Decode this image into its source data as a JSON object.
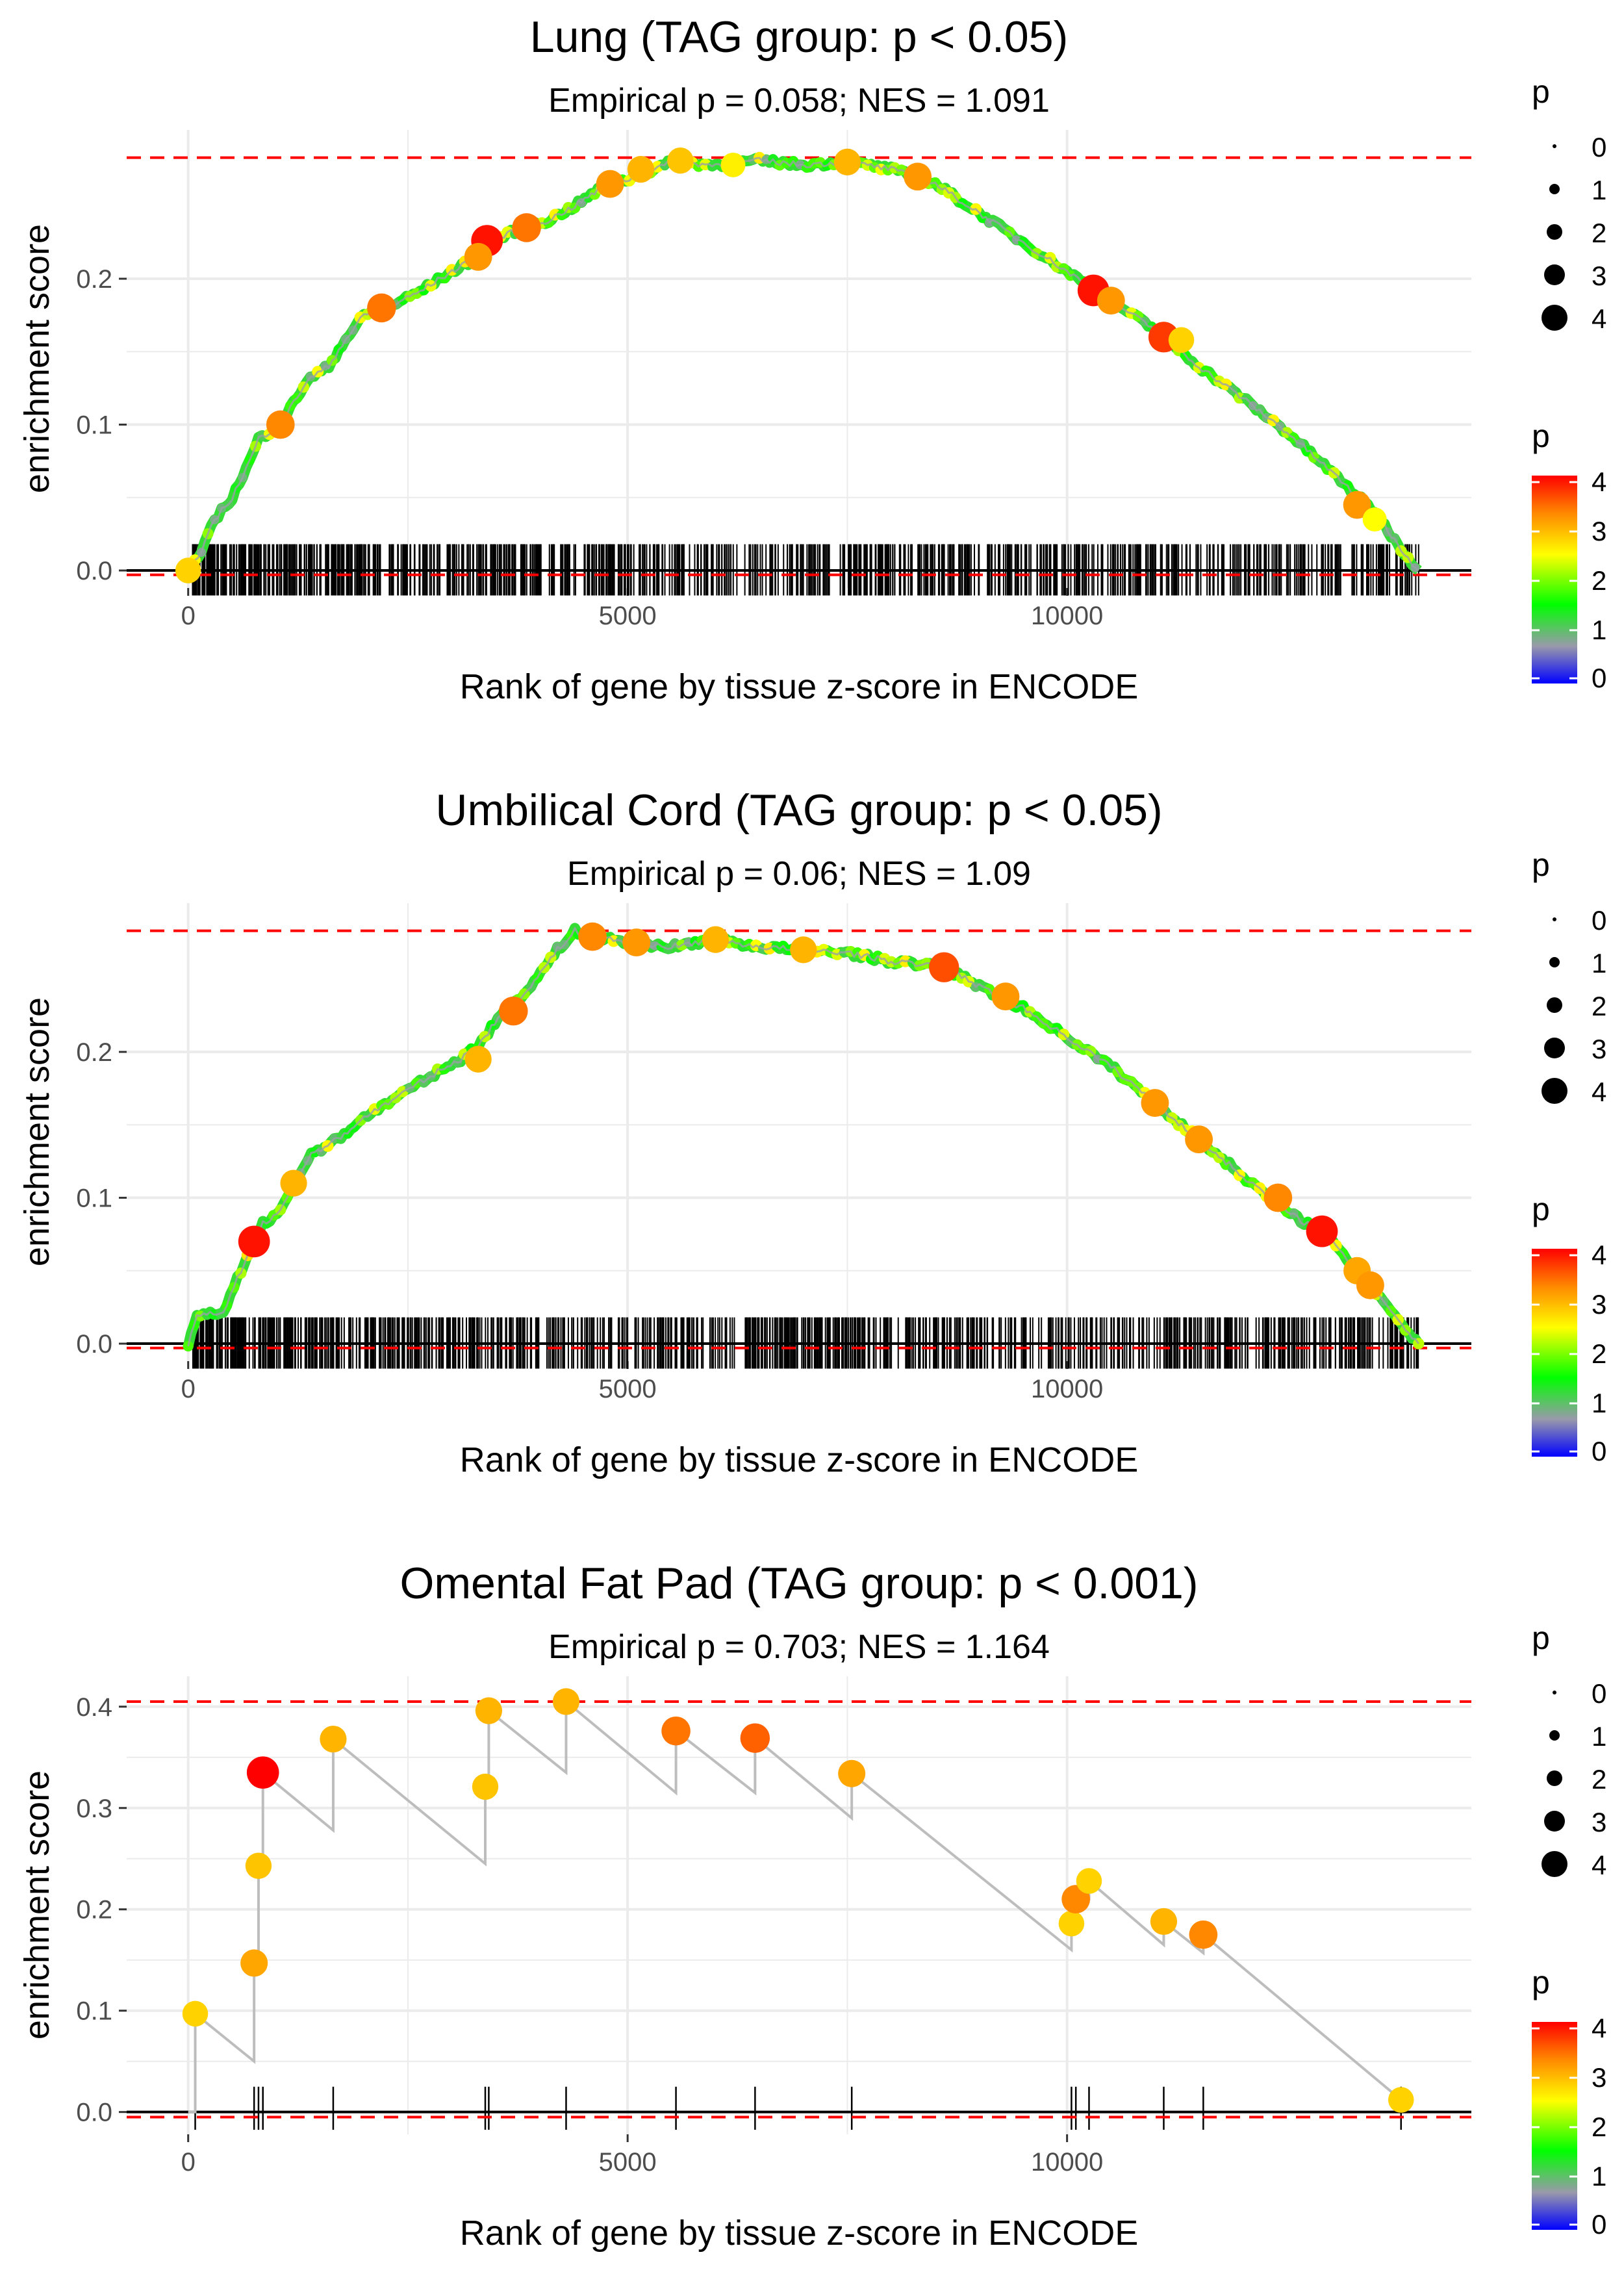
{
  "legend_labels": {
    "size_title": "p",
    "size_ticks": [
      "0",
      "1",
      "2",
      "3",
      "4"
    ],
    "color_title": "p",
    "color_ticks": [
      "0",
      "1",
      "2",
      "3",
      "4"
    ]
  },
  "colors": {
    "line": "#bdbdbd",
    "dashed": "#ff0000",
    "grid": "#ebebeb",
    "axis_text": "#4d4d4d",
    "gradient": [
      "#0000ff",
      "#9999aa",
      "#00ff00",
      "#ffff00",
      "#ff0000"
    ]
  },
  "chart_data": [
    {
      "type": "line",
      "title": "Lung (TAG group: p < 0.05)",
      "subtitle": "Empirical p = 0.058; NES = 1.091",
      "xlabel": "Rank of gene by tissue z-score in ENCODE",
      "ylabel": "enrichment score",
      "x_ticks": [
        "0",
        "5000",
        "10000"
      ],
      "x_tick_values": [
        0,
        5000,
        10000
      ],
      "y_ticks": [
        "0.0",
        "0.1",
        "0.2"
      ],
      "y_tick_values": [
        0.0,
        0.1,
        0.2
      ],
      "xlim": [
        -700,
        14600
      ],
      "ylim": [
        -0.012,
        0.302
      ],
      "dashed_max": 0.283,
      "dashed_min": -0.003,
      "rug": {
        "density": "dense",
        "start": 50,
        "end": 14000,
        "count": 900,
        "height": 0.018
      },
      "curve": [
        [
          0,
          0
        ],
        [
          150,
          0.012
        ],
        [
          300,
          0.035
        ],
        [
          500,
          0.05
        ],
        [
          700,
          0.075
        ],
        [
          800,
          0.09
        ],
        [
          1050,
          0.1
        ],
        [
          1200,
          0.115
        ],
        [
          1350,
          0.13
        ],
        [
          1600,
          0.14
        ],
        [
          1750,
          0.155
        ],
        [
          2000,
          0.175
        ],
        [
          2250,
          0.18
        ],
        [
          2600,
          0.19
        ],
        [
          3000,
          0.205
        ],
        [
          3300,
          0.215
        ],
        [
          3550,
          0.228
        ],
        [
          3800,
          0.235
        ],
        [
          4100,
          0.24
        ],
        [
          4400,
          0.25
        ],
        [
          4700,
          0.262
        ],
        [
          5100,
          0.27
        ],
        [
          5500,
          0.28
        ],
        [
          6000,
          0.278
        ],
        [
          6500,
          0.281
        ],
        [
          7000,
          0.278
        ],
        [
          7500,
          0.28
        ],
        [
          8000,
          0.275
        ],
        [
          8500,
          0.265
        ],
        [
          9000,
          0.245
        ],
        [
          9500,
          0.225
        ],
        [
          10000,
          0.205
        ],
        [
          10500,
          0.185
        ],
        [
          11000,
          0.165
        ],
        [
          11500,
          0.14
        ],
        [
          12000,
          0.118
        ],
        [
          12500,
          0.095
        ],
        [
          13000,
          0.068
        ],
        [
          13500,
          0.04
        ],
        [
          13800,
          0.015
        ],
        [
          14000,
          0.0
        ]
      ],
      "highlights": [
        [
          0,
          0,
          2.8
        ],
        [
          1050,
          0.1,
          3.3
        ],
        [
          2200,
          0.18,
          3.4
        ],
        [
          3400,
          0.226,
          3.9
        ],
        [
          3300,
          0.215,
          3.2
        ],
        [
          3850,
          0.235,
          3.4
        ],
        [
          4800,
          0.265,
          3.2
        ],
        [
          5150,
          0.275,
          3.0
        ],
        [
          5600,
          0.281,
          2.9
        ],
        [
          6200,
          0.278,
          2.6
        ],
        [
          7500,
          0.28,
          3.0
        ],
        [
          8300,
          0.27,
          3.2
        ],
        [
          10300,
          0.192,
          3.9
        ],
        [
          10500,
          0.185,
          3.2
        ],
        [
          11100,
          0.16,
          3.7
        ],
        [
          11300,
          0.158,
          2.8
        ],
        [
          13300,
          0.045,
          3.2
        ],
        [
          13500,
          0.035,
          2.5
        ]
      ]
    },
    {
      "type": "line",
      "title": "Umbilical Cord (TAG group: p < 0.05)",
      "subtitle": "Empirical p = 0.06; NES = 1.09",
      "xlabel": "Rank of gene by tissue z-score in ENCODE",
      "ylabel": "enrichment score",
      "x_ticks": [
        "0",
        "5000",
        "10000"
      ],
      "x_tick_values": [
        0,
        5000,
        10000
      ],
      "y_ticks": [
        "0.0",
        "0.1",
        "0.2"
      ],
      "y_tick_values": [
        0.0,
        0.1,
        0.2
      ],
      "xlim": [
        -700,
        14600
      ],
      "ylim": [
        -0.012,
        0.302
      ],
      "dashed_max": 0.283,
      "dashed_min": -0.003,
      "rug": {
        "density": "dense",
        "start": 50,
        "end": 14000,
        "count": 900,
        "height": 0.018
      },
      "curve": [
        [
          0,
          0
        ],
        [
          100,
          0.018
        ],
        [
          400,
          0.022
        ],
        [
          600,
          0.05
        ],
        [
          750,
          0.07
        ],
        [
          850,
          0.082
        ],
        [
          1050,
          0.09
        ],
        [
          1200,
          0.11
        ],
        [
          1400,
          0.13
        ],
        [
          1700,
          0.14
        ],
        [
          2000,
          0.155
        ],
        [
          2400,
          0.17
        ],
        [
          2800,
          0.185
        ],
        [
          3100,
          0.195
        ],
        [
          3300,
          0.205
        ],
        [
          3600,
          0.228
        ],
        [
          3900,
          0.245
        ],
        [
          4200,
          0.27
        ],
        [
          4400,
          0.283
        ],
        [
          4600,
          0.279
        ],
        [
          5000,
          0.275
        ],
        [
          5500,
          0.272
        ],
        [
          6000,
          0.277
        ],
        [
          6500,
          0.272
        ],
        [
          7000,
          0.27
        ],
        [
          7500,
          0.268
        ],
        [
          8000,
          0.262
        ],
        [
          8600,
          0.258
        ],
        [
          9000,
          0.245
        ],
        [
          9500,
          0.23
        ],
        [
          10000,
          0.21
        ],
        [
          10500,
          0.19
        ],
        [
          11000,
          0.165
        ],
        [
          11500,
          0.14
        ],
        [
          12000,
          0.115
        ],
        [
          12500,
          0.09
        ],
        [
          12900,
          0.077
        ],
        [
          13300,
          0.05
        ],
        [
          13600,
          0.03
        ],
        [
          13850,
          0.01
        ],
        [
          14000,
          0.0
        ]
      ],
      "highlights": [
        [
          750,
          0.07,
          3.9
        ],
        [
          1200,
          0.11,
          3.0
        ],
        [
          3300,
          0.195,
          3.0
        ],
        [
          3700,
          0.228,
          3.4
        ],
        [
          4600,
          0.279,
          3.3
        ],
        [
          5100,
          0.275,
          3.2
        ],
        [
          6000,
          0.277,
          3.0
        ],
        [
          7000,
          0.27,
          3.0
        ],
        [
          8600,
          0.258,
          3.6
        ],
        [
          9300,
          0.238,
          3.2
        ],
        [
          11000,
          0.165,
          3.2
        ],
        [
          11500,
          0.14,
          3.2
        ],
        [
          12400,
          0.1,
          3.3
        ],
        [
          12900,
          0.077,
          3.9
        ],
        [
          13300,
          0.05,
          3.1
        ],
        [
          13450,
          0.04,
          3.2
        ]
      ]
    },
    {
      "type": "line",
      "title": "Omental Fat Pad (TAG group: p < 0.001)",
      "subtitle": "Empirical p = 0.703; NES = 1.164",
      "xlabel": "Rank of gene by tissue z-score in ENCODE",
      "ylabel": "enrichment score",
      "x_ticks": [
        "0",
        "5000",
        "10000"
      ],
      "x_tick_values": [
        0,
        5000,
        10000
      ],
      "y_ticks": [
        "0.0",
        "0.1",
        "0.2",
        "0.3",
        "0.4"
      ],
      "y_tick_values": [
        0.0,
        0.1,
        0.2,
        0.3,
        0.4
      ],
      "xlim": [
        -700,
        14600
      ],
      "ylim": [
        -0.022,
        0.43
      ],
      "dashed_max": 0.405,
      "dashed_min": -0.005,
      "rug": {
        "density": "sparse",
        "positions": [
          80,
          750,
          800,
          850,
          1650,
          3380,
          3420,
          4300,
          5550,
          6450,
          7550,
          10050,
          10100,
          10250,
          11100,
          11550,
          13800
        ],
        "height": 0.025
      },
      "curve": [
        [
          0,
          0
        ],
        [
          80,
          0
        ],
        [
          80,
          0.097
        ],
        [
          750,
          0.05
        ],
        [
          750,
          0.147
        ],
        [
          800,
          0.147
        ],
        [
          800,
          0.243
        ],
        [
          850,
          0.243
        ],
        [
          850,
          0.335
        ],
        [
          1650,
          0.278
        ],
        [
          1650,
          0.368
        ],
        [
          3380,
          0.245
        ],
        [
          3380,
          0.321
        ],
        [
          3420,
          0.321
        ],
        [
          3420,
          0.396
        ],
        [
          4300,
          0.335
        ],
        [
          4300,
          0.405
        ],
        [
          5550,
          0.315
        ],
        [
          5550,
          0.376
        ],
        [
          6450,
          0.315
        ],
        [
          6450,
          0.369
        ],
        [
          7550,
          0.29
        ],
        [
          7550,
          0.334
        ],
        [
          10050,
          0.16
        ],
        [
          10050,
          0.186
        ],
        [
          10100,
          0.186
        ],
        [
          10100,
          0.21
        ],
        [
          10250,
          0.21
        ],
        [
          10250,
          0.228
        ],
        [
          11100,
          0.165
        ],
        [
          11100,
          0.188
        ],
        [
          11550,
          0.157
        ],
        [
          11550,
          0.175
        ],
        [
          13800,
          0.012
        ]
      ],
      "highlights": [
        [
          80,
          0.097,
          2.8
        ],
        [
          750,
          0.147,
          3.1
        ],
        [
          800,
          0.243,
          2.9
        ],
        [
          850,
          0.335,
          4.0
        ],
        [
          1650,
          0.368,
          3.0
        ],
        [
          3380,
          0.321,
          2.9
        ],
        [
          3420,
          0.396,
          3.0
        ],
        [
          4300,
          0.405,
          3.0
        ],
        [
          5550,
          0.376,
          3.4
        ],
        [
          6450,
          0.369,
          3.5
        ],
        [
          7550,
          0.334,
          3.1
        ],
        [
          10050,
          0.186,
          2.8
        ],
        [
          10100,
          0.21,
          3.3
        ],
        [
          10250,
          0.228,
          2.8
        ],
        [
          11100,
          0.188,
          3.0
        ],
        [
          11550,
          0.175,
          3.3
        ],
        [
          13800,
          0.012,
          2.8
        ]
      ]
    }
  ]
}
